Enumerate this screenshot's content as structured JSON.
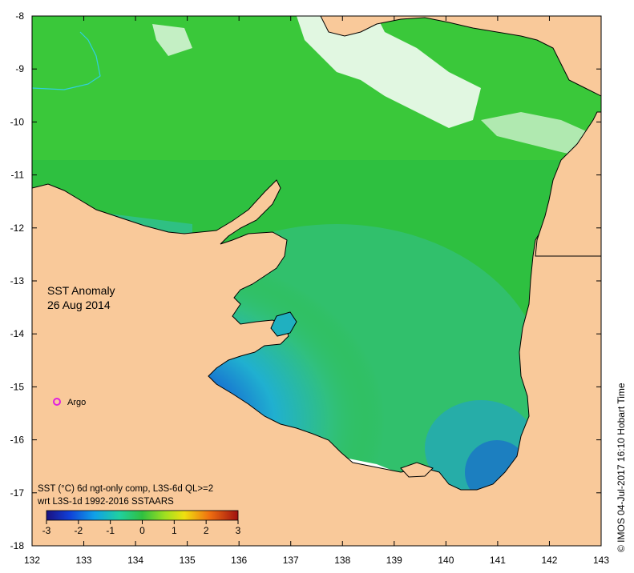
{
  "map": {
    "title_line1": "SST Anomaly",
    "title_line2": "26 Aug 2014",
    "x_ticks": [
      "132",
      "133",
      "134",
      "135",
      "136",
      "137",
      "138",
      "139",
      "140",
      "141",
      "142",
      "143"
    ],
    "y_ticks": [
      "-8",
      "-9",
      "-10",
      "-11",
      "-12",
      "-13",
      "-14",
      "-15",
      "-16",
      "-17",
      "-18"
    ],
    "lon_range": [
      132,
      143
    ],
    "lat_range": [
      -18,
      -8
    ]
  },
  "argo": {
    "label": "Argo",
    "color": "#e020e0"
  },
  "legend": {
    "line1": "SST (°C) 6d ngt-only comp, L3S-6d QL>=2",
    "line2": "wrt L3S-1d 1992-2016 SSTAARS",
    "ticks": [
      "-3",
      "-2",
      "-1",
      "0",
      "1",
      "2",
      "3"
    ]
  },
  "credit": "© IMOS 04-Jul-2017 16:10 Hobart Time",
  "colors": {
    "land": "#f9c99a",
    "sea_green": "#2ec040",
    "sea_teal": "#30c090",
    "sea_cyan": "#20b0d0",
    "sea_blue": "#1060d0",
    "sea_dark": "#0a1fa0",
    "no_data": "#ffffff"
  }
}
